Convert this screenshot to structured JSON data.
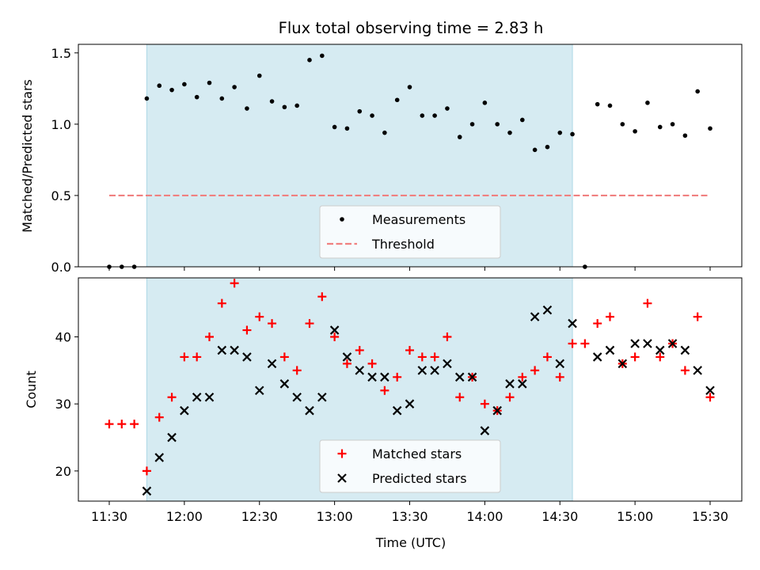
{
  "chart_data": [
    {
      "type": "scatter",
      "title": "Flux total observing time = 2.83 h",
      "xlabel": "",
      "ylabel": "Matched/Predicted stars",
      "ylim": [
        0,
        1.56
      ],
      "yticks": [
        0.0,
        0.5,
        1.0,
        1.5
      ],
      "ytick_labels": [
        "0.0",
        "0.5",
        "1.0",
        "1.5"
      ],
      "shaded_span": [
        "11:45",
        "14:35"
      ],
      "shaded_color": "#add8e6",
      "legend_position": "lower-center",
      "series": [
        {
          "name": "Measurements",
          "marker": "dot",
          "color": "#000000",
          "x": [
            "11:30",
            "11:35",
            "11:40",
            "11:45",
            "11:50",
            "11:55",
            "12:00",
            "12:05",
            "12:10",
            "12:15",
            "12:20",
            "12:25",
            "12:30",
            "12:35",
            "12:40",
            "12:45",
            "12:50",
            "12:55",
            "13:00",
            "13:05",
            "13:10",
            "13:15",
            "13:20",
            "13:25",
            "13:30",
            "13:35",
            "13:40",
            "13:45",
            "13:50",
            "13:55",
            "14:00",
            "14:05",
            "14:10",
            "14:15",
            "14:20",
            "14:25",
            "14:30",
            "14:35",
            "14:40",
            "14:45",
            "14:50",
            "14:55",
            "15:00",
            "15:05",
            "15:10",
            "15:15",
            "15:20",
            "15:25",
            "15:30"
          ],
          "y": [
            0.0,
            0.0,
            0.0,
            1.18,
            1.27,
            1.24,
            1.28,
            1.19,
            1.29,
            1.18,
            1.26,
            1.11,
            1.34,
            1.16,
            1.12,
            1.13,
            1.45,
            1.48,
            0.98,
            0.97,
            1.09,
            1.06,
            0.94,
            1.17,
            1.26,
            1.06,
            1.06,
            1.11,
            0.91,
            1.0,
            1.15,
            1.0,
            0.94,
            1.03,
            0.82,
            0.84,
            0.94,
            0.93,
            0.0,
            1.14,
            1.13,
            1.0,
            0.95,
            1.15,
            0.98,
            1.0,
            0.92,
            1.23,
            0.97
          ]
        },
        {
          "name": "Threshold",
          "marker": "dashed-line",
          "color": "#f08080",
          "x": [
            "11:30",
            "15:30"
          ],
          "y": [
            0.5,
            0.5
          ]
        }
      ]
    },
    {
      "type": "scatter",
      "title": "",
      "xlabel": "Time (UTC)",
      "ylabel": "Count",
      "ylim": [
        15.5,
        48.8
      ],
      "yticks": [
        20,
        30,
        40
      ],
      "ytick_labels": [
        "20",
        "30",
        "40"
      ],
      "xticks": [
        "11:30",
        "12:00",
        "12:30",
        "13:00",
        "13:30",
        "14:00",
        "14:30",
        "15:00",
        "15:30"
      ],
      "shaded_span": [
        "11:45",
        "14:35"
      ],
      "shaded_color": "#add8e6",
      "legend_position": "lower-center",
      "series": [
        {
          "name": "Matched stars",
          "marker": "plus",
          "color": "#ff0000",
          "x": [
            "11:30",
            "11:35",
            "11:40",
            "11:45",
            "11:50",
            "11:55",
            "12:00",
            "12:05",
            "12:10",
            "12:15",
            "12:20",
            "12:25",
            "12:30",
            "12:35",
            "12:40",
            "12:45",
            "12:50",
            "12:55",
            "13:00",
            "13:05",
            "13:10",
            "13:15",
            "13:20",
            "13:25",
            "13:30",
            "13:35",
            "13:40",
            "13:45",
            "13:50",
            "13:55",
            "14:00",
            "14:05",
            "14:10",
            "14:15",
            "14:20",
            "14:25",
            "14:30",
            "14:35",
            "14:40",
            "14:45",
            "14:50",
            "14:55",
            "15:00",
            "15:05",
            "15:10",
            "15:15",
            "15:20",
            "15:25",
            "15:30"
          ],
          "y": [
            27,
            27,
            27,
            20,
            28,
            31,
            37,
            37,
            40,
            45,
            48,
            41,
            43,
            42,
            37,
            35,
            42,
            46,
            40,
            36,
            38,
            36,
            32,
            34,
            38,
            37,
            37,
            40,
            31,
            34,
            30,
            29,
            31,
            34,
            35,
            37,
            34,
            39,
            39,
            42,
            43,
            36,
            37,
            45,
            37,
            39,
            35,
            43,
            31
          ]
        },
        {
          "name": "Predicted stars",
          "marker": "x",
          "color": "#000000",
          "x": [
            "11:45",
            "11:50",
            "11:55",
            "12:00",
            "12:05",
            "12:10",
            "12:15",
            "12:20",
            "12:25",
            "12:30",
            "12:35",
            "12:40",
            "12:45",
            "12:50",
            "12:55",
            "13:00",
            "13:05",
            "13:10",
            "13:15",
            "13:20",
            "13:25",
            "13:30",
            "13:35",
            "13:40",
            "13:45",
            "13:50",
            "13:55",
            "14:00",
            "14:05",
            "14:10",
            "14:15",
            "14:20",
            "14:25",
            "14:30",
            "14:35",
            "14:45",
            "14:50",
            "14:55",
            "15:00",
            "15:05",
            "15:10",
            "15:15",
            "15:20",
            "15:25",
            "15:30"
          ],
          "y": [
            17,
            22,
            25,
            29,
            31,
            31,
            38,
            38,
            37,
            32,
            36,
            33,
            31,
            29,
            31,
            41,
            37,
            35,
            34,
            34,
            29,
            30,
            35,
            35,
            36,
            34,
            34,
            26,
            29,
            33,
            33,
            43,
            44,
            36,
            42,
            37,
            38,
            36,
            39,
            39,
            38,
            39,
            38,
            35,
            32
          ]
        }
      ]
    }
  ]
}
